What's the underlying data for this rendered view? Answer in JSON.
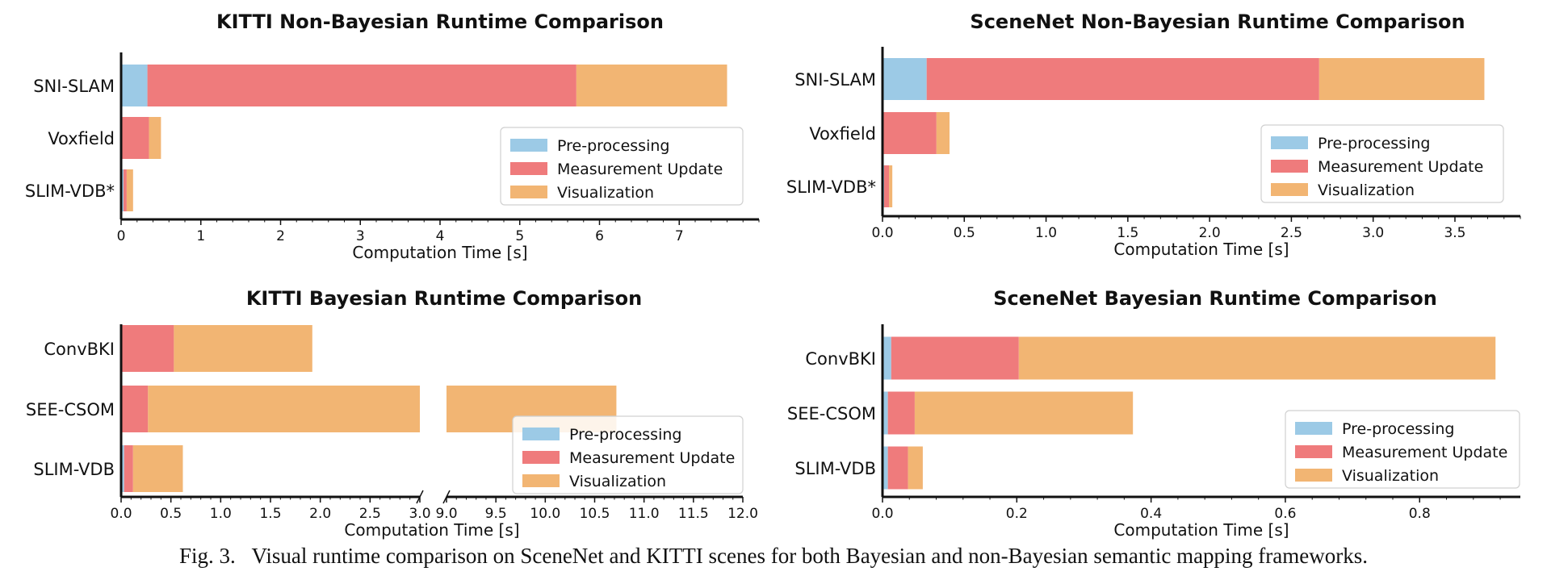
{
  "caption": "Fig. 3.   Visual runtime comparison on SceneNet and KITTI scenes for both Bayesian and non-Bayesian semantic mapping frameworks.",
  "legend_labels": [
    "Pre-processing",
    "Measurement Update",
    "Visualization"
  ],
  "colors": {
    "preprocessing": "#9ccae6",
    "measurement": "#ef7b7c",
    "visualization": "#f2b573"
  },
  "chart_data": [
    {
      "id": "kitti-nonbayes",
      "type": "bar",
      "orientation": "horizontal",
      "stacked": true,
      "title": "KITTI Non-Bayesian Runtime Comparison",
      "xlabel": "Computation Time [s]",
      "ylabel": "",
      "xlim": [
        0,
        8
      ],
      "xticks": [
        0,
        1,
        2,
        3,
        4,
        5,
        6,
        7
      ],
      "xtick_labels": [
        "0",
        "1",
        "2",
        "3",
        "4",
        "5",
        "6",
        "7"
      ],
      "legend": "center-right",
      "categories": [
        "SNI-SLAM",
        "Voxfield",
        "SLIM-VDB*"
      ],
      "series": [
        {
          "name": "Pre-processing",
          "values": [
            0.33,
            0.0,
            0.03
          ]
        },
        {
          "name": "Measurement Update",
          "values": [
            5.38,
            0.35,
            0.04
          ]
        },
        {
          "name": "Visualization",
          "values": [
            1.89,
            0.15,
            0.08
          ]
        }
      ]
    },
    {
      "id": "scenenet-nonbayes",
      "type": "bar",
      "orientation": "horizontal",
      "stacked": true,
      "title": "SceneNet Non-Bayesian Runtime Comparison",
      "xlabel": "Computation Time [s]",
      "ylabel": "",
      "xlim": [
        0,
        3.9
      ],
      "xticks": [
        0,
        0.5,
        1,
        1.5,
        2,
        2.5,
        3,
        3.5
      ],
      "xtick_labels": [
        "0.0",
        "0.5",
        "1.0",
        "1.5",
        "2.0",
        "2.5",
        "3.0",
        "3.5"
      ],
      "legend": "center-right",
      "categories": [
        "SNI-SLAM",
        "Voxfield",
        "SLIM-VDB*"
      ],
      "series": [
        {
          "name": "Pre-processing",
          "values": [
            0.27,
            0.0,
            0.01
          ]
        },
        {
          "name": "Measurement Update",
          "values": [
            2.4,
            0.33,
            0.03
          ]
        },
        {
          "name": "Visualization",
          "values": [
            1.01,
            0.08,
            0.02
          ]
        }
      ]
    },
    {
      "id": "kitti-bayes",
      "type": "bar",
      "orientation": "horizontal",
      "stacked": true,
      "broken_axis": true,
      "title": "KITTI Bayesian Runtime Comparison",
      "xlabel": "Computation Time [s]",
      "ylabel": "",
      "xlim_segments": [
        [
          0,
          3.0
        ],
        [
          9.0,
          12.0
        ]
      ],
      "xticks_segments": [
        [
          0,
          0.5,
          1,
          1.5,
          2,
          2.5,
          3
        ],
        [
          9,
          9.5,
          10,
          10.5,
          11,
          11.5,
          12
        ]
      ],
      "xtick_labels_segments": [
        [
          "0.0",
          "0.5",
          "1.0",
          "1.5",
          "2.0",
          "2.5",
          "3.0"
        ],
        [
          "9.0",
          "9.5",
          "10.0",
          "10.5",
          "11.0",
          "11.5",
          "12.0"
        ]
      ],
      "legend": "lower-right",
      "categories": [
        "ConvBKI",
        "SEE-CSOM",
        "SLIM-VDB"
      ],
      "series": [
        {
          "name": "Pre-processing",
          "values": [
            0.0,
            0.0,
            0.03
          ]
        },
        {
          "name": "Measurement Update",
          "values": [
            0.53,
            0.27,
            0.09
          ]
        },
        {
          "name": "Visualization",
          "values": [
            1.39,
            10.45,
            0.5
          ]
        }
      ]
    },
    {
      "id": "scenenet-bayes",
      "type": "bar",
      "orientation": "horizontal",
      "stacked": true,
      "title": "SceneNet Bayesian Runtime Comparison",
      "xlabel": "Computation Time [s]",
      "ylabel": "",
      "xlim": [
        0,
        0.95
      ],
      "xticks": [
        0,
        0.2,
        0.4,
        0.6,
        0.8
      ],
      "xtick_labels": [
        "0.0",
        "0.2",
        "0.4",
        "0.6",
        "0.8"
      ],
      "legend": "lower-right",
      "categories": [
        "ConvBKI",
        "SEE-CSOM",
        "SLIM-VDB"
      ],
      "series": [
        {
          "name": "Pre-processing",
          "values": [
            0.013,
            0.008,
            0.008
          ]
        },
        {
          "name": "Measurement Update",
          "values": [
            0.19,
            0.04,
            0.03
          ]
        },
        {
          "name": "Visualization",
          "values": [
            0.71,
            0.325,
            0.022
          ]
        }
      ]
    }
  ]
}
